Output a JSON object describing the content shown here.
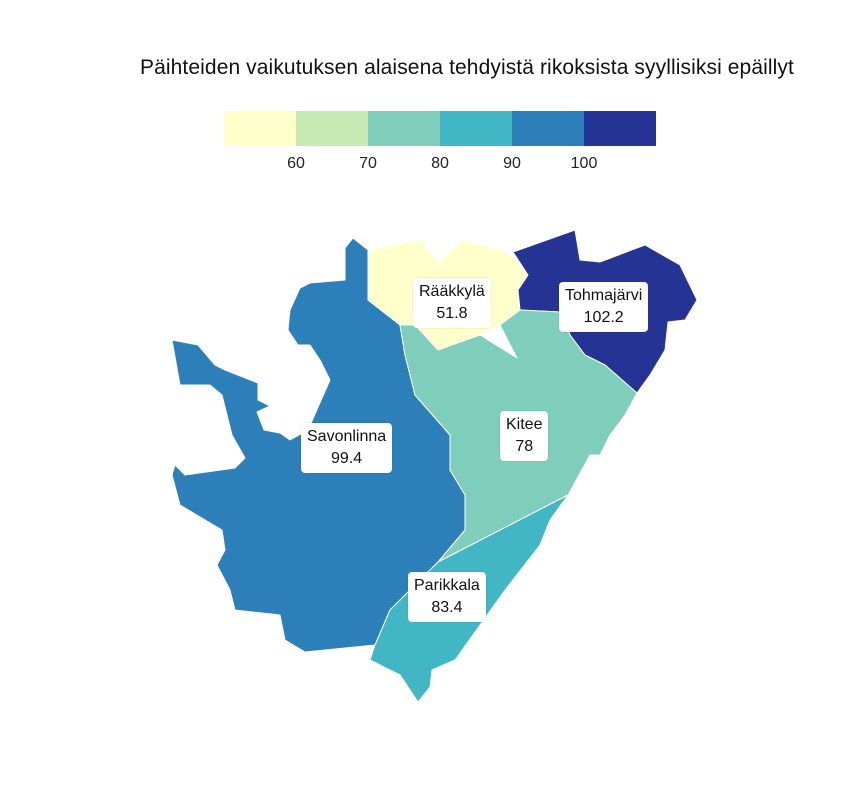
{
  "map": {
    "title": "Päihteiden vaikutuksen alaisena tehdyistä rikoksista syyllisiksi epäillyt",
    "legend": {
      "colors": [
        "#ffffcc",
        "#c7e9b4",
        "#7fcdbb",
        "#41b6c4",
        "#2c7fb8",
        "#253494"
      ],
      "ticks": [
        "60",
        "70",
        "80",
        "90",
        "100"
      ]
    },
    "regions": [
      {
        "name": "Rääkkylä",
        "value": "51.8",
        "color": "#ffffcc"
      },
      {
        "name": "Tohmajärvi",
        "value": "102.2",
        "color": "#253494"
      },
      {
        "name": "Savonlinna",
        "value": "99.4",
        "color": "#2c7fb8"
      },
      {
        "name": "Kitee",
        "value": "78",
        "color": "#7fcdbb"
      },
      {
        "name": "Parikkala",
        "value": "83.4",
        "color": "#41b6c4"
      }
    ]
  }
}
